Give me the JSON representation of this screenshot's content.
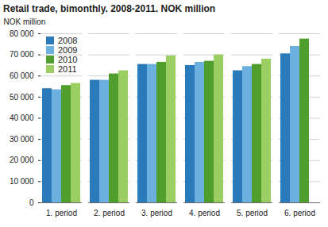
{
  "chart_data": {
    "type": "bar",
    "title": "Retail trade, bimonthly.  2008-2011. NOK million",
    "y_label": "NOK million",
    "categories": [
      "1. period",
      "2. period",
      "3. period",
      "4. period",
      "5. period",
      "6. period"
    ],
    "series": [
      {
        "name": "2008",
        "color": "#2b7bba",
        "values": [
          54000,
          58000,
          65500,
          65000,
          62500,
          70500
        ]
      },
      {
        "name": "2009",
        "color": "#6cb0e0",
        "values": [
          53500,
          58000,
          65500,
          66500,
          64500,
          74000
        ]
      },
      {
        "name": "2010",
        "color": "#4f9e2e",
        "values": [
          55500,
          61000,
          66500,
          67000,
          65500,
          77500
        ]
      },
      {
        "name": "2011",
        "color": "#9ccf63",
        "values": [
          56500,
          62500,
          69500,
          70000,
          68000,
          null
        ]
      }
    ],
    "ylim": [
      0,
      80000
    ],
    "yticks": [
      0,
      {
        "value": 10000,
        "label": "10 000"
      },
      {
        "value": 20000,
        "label": "20 000"
      },
      {
        "value": 30000,
        "label": "30 000"
      },
      {
        "value": 40000,
        "label": "40 000"
      },
      {
        "value": 50000,
        "label": "50 000"
      },
      {
        "value": 60000,
        "label": "60 000"
      },
      {
        "value": 70000,
        "label": "70 000"
      },
      {
        "value": 80000,
        "label": "80 000"
      }
    ],
    "grid": true,
    "legend": "top-left"
  }
}
